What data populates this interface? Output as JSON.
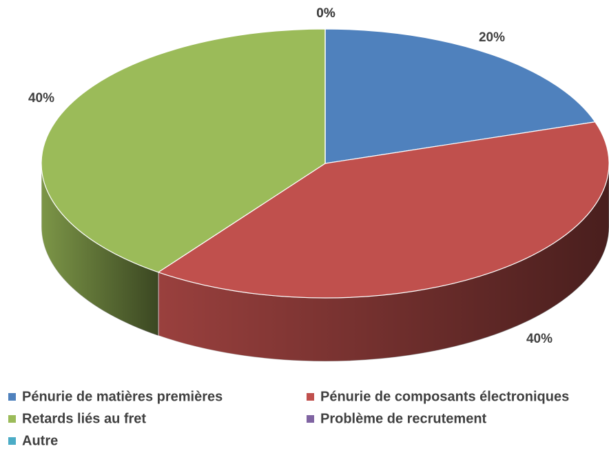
{
  "chart_data": {
    "type": "pie",
    "categories": [
      "Pénurie de matières premières",
      "Pénurie de composants électroniques",
      "Retards liés au fret",
      "Problème de recrutement",
      "Autre"
    ],
    "values": [
      20,
      40,
      40,
      0,
      0
    ],
    "value_labels": [
      "20%",
      "40%",
      "40%",
      "0%",
      "0%"
    ],
    "colors": [
      "#4f81bd",
      "#c0504d",
      "#9bbb59",
      "#8064a2",
      "#4bacc6"
    ],
    "legend": "bottom"
  }
}
